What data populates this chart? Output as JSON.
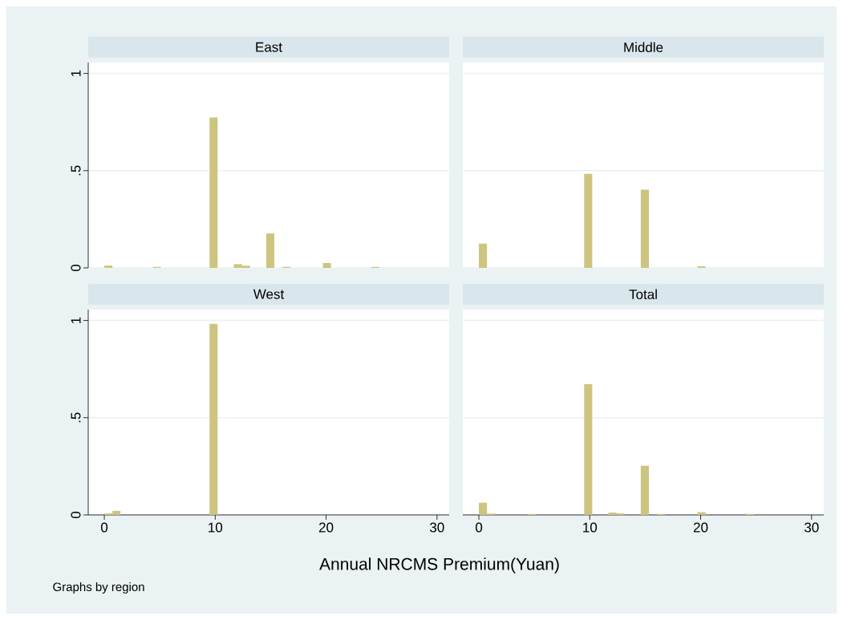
{
  "chart_data": [
    {
      "type": "histogram",
      "title": "East",
      "color": "#cdc47f",
      "grid": "y",
      "tick_labels": "y",
      "xlim": [
        -1.45,
        31.1
      ],
      "ylim": [
        0,
        1.056
      ],
      "yticks": [
        0,
        {
          "value": 0.5,
          "label": ".5"
        },
        1
      ],
      "bins": [
        0,
        0.73,
        1.46,
        2.19,
        2.92,
        3.65,
        4.38,
        5.11,
        5.84,
        6.57,
        7.3,
        8.03,
        8.76,
        9.49,
        10.22,
        10.95,
        11.68,
        12.41,
        13.14,
        13.87,
        14.6,
        15.33,
        16.06,
        16.79,
        17.52,
        18.25,
        18.98,
        19.71,
        20.44,
        21.17,
        21.9,
        22.63,
        23.36,
        24.09,
        24.82
      ],
      "values": [
        0.012,
        0,
        0,
        0,
        0,
        0,
        0.005,
        0,
        0,
        0,
        0,
        0,
        0,
        0.773,
        0,
        0,
        0.019,
        0.011,
        0,
        0,
        0.177,
        0,
        0.005,
        0,
        0,
        0,
        0,
        0.025,
        0,
        0,
        0,
        0,
        0,
        0.005
      ]
    },
    {
      "type": "histogram",
      "title": "Middle",
      "color": "#cdc47f",
      "grid": "y",
      "tick_labels": false,
      "xlim": [
        -1.45,
        31.1
      ],
      "ylim": [
        0,
        1.056
      ],
      "yticks": [
        {
          "value": 0,
          "label": null
        },
        {
          "value": 0.5,
          "label": null
        },
        {
          "value": 1,
          "label": null
        }
      ],
      "bins": [
        0,
        0.73,
        1.46,
        2.19,
        2.92,
        3.65,
        4.38,
        5.11,
        5.84,
        6.57,
        7.3,
        8.03,
        8.76,
        9.49,
        10.22,
        10.95,
        11.68,
        12.41,
        13.14,
        13.87,
        14.6,
        15.33,
        16.06,
        16.79,
        17.52,
        18.25,
        18.98,
        19.71,
        20.44,
        21.17,
        21.9,
        22.63,
        23.36,
        24.09,
        24.82
      ],
      "values": [
        0.125,
        0,
        0,
        0,
        0,
        0,
        0,
        0,
        0,
        0,
        0,
        0,
        0,
        0.484,
        0,
        0,
        0,
        0,
        0,
        0,
        0.402,
        0,
        0,
        0,
        0,
        0,
        0,
        0.008,
        0,
        0,
        0,
        0,
        0,
        0
      ]
    },
    {
      "type": "histogram",
      "title": "West",
      "color": "#cdc47f",
      "grid": "y",
      "xlim": [
        -1.45,
        31.1
      ],
      "ylim": [
        0,
        1.056
      ],
      "xticks": [
        0,
        10,
        20,
        30
      ],
      "yticks": [
        0,
        {
          "value": 0.5,
          "label": ".5"
        },
        1
      ],
      "bins": [
        0,
        0.73,
        1.46,
        2.19,
        2.92,
        3.65,
        4.38,
        5.11,
        5.84,
        6.57,
        7.3,
        8.03,
        8.76,
        9.49,
        10.22,
        10.95,
        11.68,
        12.41,
        13.14,
        13.87,
        14.6,
        15.33,
        16.06,
        16.79,
        17.52,
        18.25,
        18.98,
        19.71,
        20.44,
        21.17,
        21.9,
        22.63,
        23.36,
        24.09,
        24.82
      ],
      "values": [
        0.008,
        0.021,
        0,
        0,
        0,
        0,
        0,
        0,
        0,
        0,
        0,
        0,
        0,
        0.983,
        0,
        0,
        0,
        0,
        0,
        0,
        0,
        0,
        0,
        0,
        0,
        0,
        0,
        0,
        0,
        0,
        0,
        0,
        0,
        0
      ]
    },
    {
      "type": "histogram",
      "title": "Total",
      "xlabel": "Annual NRCMS Premium(Yuan)",
      "annotations": [
        "Graphs by region"
      ],
      "color": "#cdc47f",
      "grid": "y",
      "tick_labels": "x",
      "xlim": [
        -1.45,
        31.1
      ],
      "ylim": [
        0,
        1.056
      ],
      "xticks": [
        0,
        10,
        20,
        30
      ],
      "yticks": [
        {
          "value": 0,
          "label": null
        },
        {
          "value": 0.5,
          "label": null
        },
        {
          "value": 1,
          "label": null
        }
      ],
      "bins": [
        0,
        0.73,
        1.46,
        2.19,
        2.92,
        3.65,
        4.38,
        5.11,
        5.84,
        6.57,
        7.3,
        8.03,
        8.76,
        9.49,
        10.22,
        10.95,
        11.68,
        12.41,
        13.14,
        13.87,
        14.6,
        15.33,
        16.06,
        16.79,
        17.52,
        18.25,
        18.98,
        19.71,
        20.44,
        21.17,
        21.9,
        22.63,
        23.36,
        24.09,
        24.82
      ],
      "values": [
        0.063,
        0.007,
        0,
        0,
        0,
        0,
        0.005,
        0,
        0,
        0,
        0,
        0,
        0,
        0.672,
        0,
        0,
        0.012,
        0.008,
        0,
        0,
        0.253,
        0,
        0.005,
        0,
        0,
        0,
        0,
        0.014,
        0,
        0,
        0,
        0,
        0,
        0.005
      ]
    }
  ]
}
